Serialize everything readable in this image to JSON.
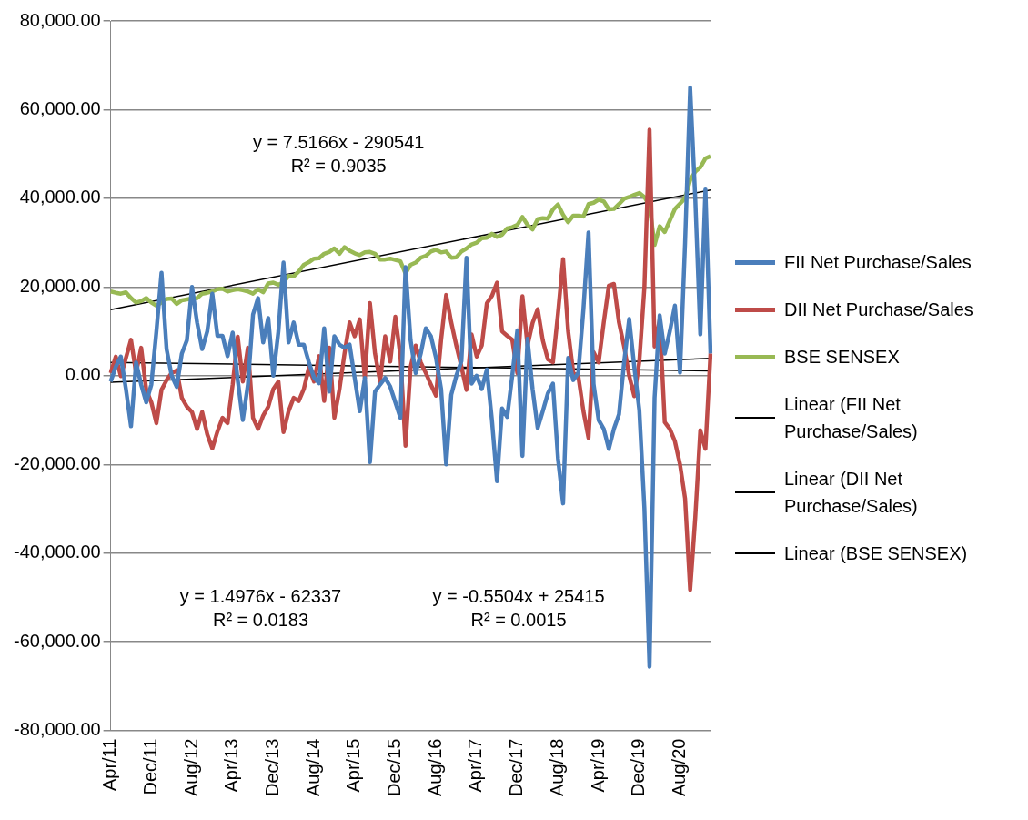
{
  "chart_data": {
    "type": "line",
    "categories": [
      "Apr/11",
      null,
      null,
      null,
      null,
      null,
      null,
      null,
      "Dec/11",
      null,
      null,
      null,
      null,
      null,
      null,
      null,
      "Aug/12",
      null,
      null,
      null,
      null,
      null,
      null,
      null,
      "Apr/13",
      null,
      null,
      null,
      null,
      null,
      null,
      null,
      "Dec/13",
      null,
      null,
      null,
      null,
      null,
      null,
      null,
      "Aug/14",
      null,
      null,
      null,
      null,
      null,
      null,
      null,
      "Apr/15",
      null,
      null,
      null,
      null,
      null,
      null,
      null,
      "Dec/15",
      null,
      null,
      null,
      null,
      null,
      null,
      null,
      "Aug/16",
      null,
      null,
      null,
      null,
      null,
      null,
      null,
      "Apr/17",
      null,
      null,
      null,
      null,
      null,
      null,
      null,
      "Dec/17",
      null,
      null,
      null,
      null,
      null,
      null,
      null,
      "Aug/18",
      null,
      null,
      null,
      null,
      null,
      null,
      null,
      "Apr/19",
      null,
      null,
      null,
      null,
      null,
      null,
      null,
      "Dec/19",
      null,
      null,
      null,
      null,
      null,
      null,
      null,
      "Aug/20",
      null,
      null,
      null,
      null,
      null,
      null
    ],
    "series": [
      {
        "name": "FII Net Purchase/Sales",
        "color": "#4a7ebb",
        "values": [
          -1300,
          2000,
          4300,
          -3000,
          -11400,
          3000,
          -2000,
          -6000,
          -2000,
          10000,
          23200,
          6000,
          0,
          -2500,
          5000,
          8000,
          20000,
          12000,
          6000,
          10000,
          18500,
          9000,
          9000,
          4400,
          9700,
          -1000,
          -10000,
          -2000,
          13800,
          17500,
          7500,
          13000,
          0,
          10000,
          25500,
          7500,
          12000,
          7000,
          7000,
          3000,
          -400,
          -1700,
          10700,
          -3600,
          8900,
          7000,
          6300,
          7000,
          -500,
          -8000,
          -500,
          -19500,
          -3600,
          -2000,
          -500,
          -2500,
          -6000,
          -9500,
          24500,
          8000,
          600,
          5000,
          10700,
          8900,
          4000,
          -3000,
          -20000,
          -4300,
          0,
          3300,
          26600,
          -1800,
          0,
          -3000,
          1400,
          -10000,
          -23800,
          -7400,
          -9300,
          0,
          10200,
          -18100,
          8300,
          -3000,
          -11800,
          -8000,
          -4000,
          -1800,
          -18700,
          -28800,
          4000,
          -1000,
          700,
          15000,
          32300,
          -1900,
          -10000,
          -12000,
          -16500,
          -12000,
          -8700,
          3000,
          12800,
          2000,
          -7800,
          -30000,
          -65600,
          -5000,
          13600,
          5000,
          10000,
          15800,
          700,
          30000,
          65000,
          40000,
          9300,
          42000,
          5000
        ]
      },
      {
        "name": "DII Net Purchase/Sales",
        "color": "#be4b48",
        "values": [
          600,
          4300,
          -100,
          4000,
          8100,
          600,
          6300,
          -3200,
          -6000,
          -10700,
          -3200,
          -1000,
          600,
          1200,
          -5000,
          -7000,
          -8200,
          -12000,
          -8200,
          -13200,
          -16400,
          -12600,
          -9500,
          -10700,
          -2000,
          8800,
          -1300,
          6300,
          -9500,
          -12000,
          -9000,
          -7000,
          -3000,
          -1300,
          -12700,
          -8000,
          -5000,
          -5700,
          -3000,
          1900,
          -1300,
          4400,
          -5700,
          6300,
          -9500,
          -3100,
          5000,
          12000,
          8900,
          12700,
          -600,
          16400,
          5000,
          -1300,
          8900,
          3200,
          13300,
          4400,
          -15800,
          1900,
          6800,
          3000,
          600,
          -2000,
          -4500,
          8000,
          18200,
          12000,
          6800,
          2000,
          -3200,
          9300,
          4300,
          6800,
          16300,
          18000,
          21000,
          10000,
          9000,
          8100,
          600,
          17900,
          6800,
          11900,
          15000,
          8000,
          3700,
          3000,
          14000,
          26300,
          10000,
          700,
          -200,
          -8000,
          -14000,
          5300,
          3000,
          12000,
          20300,
          20700,
          12000,
          6600,
          0,
          -4600,
          3200,
          20000,
          55500,
          6600,
          12600,
          -10500,
          -12000,
          -14800,
          -20000,
          -27700,
          -48300,
          -32000,
          -12300,
          -16500,
          5000
        ]
      },
      {
        "name": "BSE SENSEX",
        "color": "#98b954",
        "values": [
          19000,
          18700,
          18500,
          18800,
          17500,
          16500,
          16800,
          17500,
          16500,
          15800,
          16500,
          17300,
          17400,
          16200,
          17000,
          17200,
          17400,
          17500,
          18500,
          18700,
          19000,
          19500,
          19600,
          19000,
          19300,
          19500,
          19300,
          19000,
          18500,
          19500,
          18800,
          20800,
          21000,
          20500,
          21000,
          22500,
          22400,
          23500,
          25000,
          25600,
          26400,
          26500,
          27500,
          27900,
          28700,
          27500,
          29000,
          28200,
          27600,
          27200,
          27800,
          27900,
          27500,
          26200,
          26200,
          26400,
          26100,
          25800,
          23000,
          25000,
          25500,
          26600,
          27000,
          28000,
          28400,
          27800,
          28000,
          26600,
          26700,
          28000,
          28700,
          29600,
          30000,
          31000,
          31100,
          32000,
          31300,
          31800,
          33200,
          33500,
          34000,
          35800,
          34000,
          33000,
          35300,
          35500,
          35400,
          37500,
          38600,
          36300,
          34600,
          36100,
          36100,
          35900,
          38700,
          39000,
          39700,
          39300,
          37500,
          37600,
          38700,
          39900,
          40300,
          40800,
          41200,
          40300,
          38300,
          29500,
          33700,
          32400,
          35000,
          37600,
          38800,
          40000,
          44100,
          46000,
          47000,
          49000,
          49500
        ]
      },
      {
        "name": "Linear (FII Net Purchase/Sales)",
        "color": "#000000",
        "values": [
          -1500,
          null,
          null,
          null,
          null,
          null,
          null,
          null,
          null,
          null,
          null,
          null,
          null,
          null,
          null,
          null,
          null,
          null,
          null,
          null,
          null,
          null,
          null,
          null,
          null,
          null,
          null,
          null,
          null,
          null,
          null,
          null,
          null,
          null,
          null,
          null,
          null,
          null,
          null,
          null,
          null,
          null,
          null,
          null,
          null,
          null,
          null,
          null,
          null,
          null,
          null,
          null,
          null,
          null,
          null,
          null,
          null,
          null,
          null,
          null,
          null,
          null,
          null,
          null,
          null,
          null,
          null,
          null,
          null,
          null,
          null,
          null,
          null,
          null,
          null,
          null,
          null,
          null,
          null,
          null,
          null,
          null,
          null,
          null,
          null,
          null,
          null,
          null,
          null,
          null,
          null,
          null,
          null,
          null,
          null,
          null,
          null,
          null,
          null,
          null,
          null,
          null,
          null,
          null,
          null,
          null,
          null,
          null,
          null,
          null,
          null,
          null,
          null,
          null,
          null,
          null,
          null,
          null,
          3900
        ]
      },
      {
        "name": "Linear (DII Net Purchase/Sales)",
        "color": "#000000",
        "values": [
          3000,
          null,
          null,
          null,
          null,
          null,
          null,
          null,
          null,
          null,
          null,
          null,
          null,
          null,
          null,
          null,
          null,
          null,
          null,
          null,
          null,
          null,
          null,
          null,
          null,
          null,
          null,
          null,
          null,
          null,
          null,
          null,
          null,
          null,
          null,
          null,
          null,
          null,
          null,
          null,
          null,
          null,
          null,
          null,
          null,
          null,
          null,
          null,
          null,
          null,
          null,
          null,
          null,
          null,
          null,
          null,
          null,
          null,
          null,
          null,
          null,
          null,
          null,
          null,
          null,
          null,
          null,
          null,
          null,
          null,
          null,
          null,
          null,
          null,
          null,
          null,
          null,
          null,
          null,
          null,
          null,
          null,
          null,
          null,
          null,
          null,
          null,
          null,
          null,
          null,
          null,
          null,
          null,
          null,
          null,
          null,
          null,
          null,
          null,
          null,
          null,
          null,
          null,
          null,
          null,
          null,
          null,
          null,
          null,
          null,
          null,
          null,
          null,
          null,
          null,
          null,
          null,
          null,
          1100
        ]
      },
      {
        "name": "Linear (BSE SENSEX)",
        "color": "#000000",
        "values": [
          14900,
          null,
          null,
          null,
          null,
          null,
          null,
          null,
          null,
          null,
          null,
          null,
          null,
          null,
          null,
          null,
          null,
          null,
          null,
          null,
          null,
          null,
          null,
          null,
          null,
          null,
          null,
          null,
          null,
          null,
          null,
          null,
          null,
          null,
          null,
          null,
          null,
          null,
          null,
          null,
          null,
          null,
          null,
          null,
          null,
          null,
          null,
          null,
          null,
          null,
          null,
          null,
          null,
          null,
          null,
          null,
          null,
          null,
          null,
          null,
          null,
          null,
          null,
          null,
          null,
          null,
          null,
          null,
          null,
          null,
          null,
          null,
          null,
          null,
          null,
          null,
          null,
          null,
          null,
          null,
          null,
          null,
          null,
          null,
          null,
          null,
          null,
          null,
          null,
          null,
          null,
          null,
          null,
          null,
          null,
          null,
          null,
          null,
          null,
          null,
          null,
          null,
          null,
          null,
          null,
          null,
          null,
          null,
          null,
          null,
          null,
          null,
          null,
          null,
          null,
          null,
          null,
          null,
          41900
        ]
      }
    ],
    "ylim": [
      -80000,
      80000
    ],
    "yticks": [
      {
        "value": -80000,
        "label": "-80,000.00"
      },
      {
        "value": -60000,
        "label": "-60,000.00"
      },
      {
        "value": -40000,
        "label": "-40,000.00"
      },
      {
        "value": -20000,
        "label": "-20,000.00"
      },
      {
        "value": 0,
        "label": "0.00"
      },
      {
        "value": 20000,
        "label": "20,000.00"
      },
      {
        "value": 40000,
        "label": "40,000.00"
      },
      {
        "value": 60000,
        "label": "60,000.00"
      },
      {
        "value": 80000,
        "label": "80,000.00"
      }
    ],
    "grid": "y",
    "legend": "right",
    "annotations": [
      "y = 7.5166x - 290541\nR² = 0.9035",
      "y = 1.4976x - 62337\nR² = 0.0183",
      "y = -0.5504x + 25415\nR² = 0.0015"
    ]
  }
}
